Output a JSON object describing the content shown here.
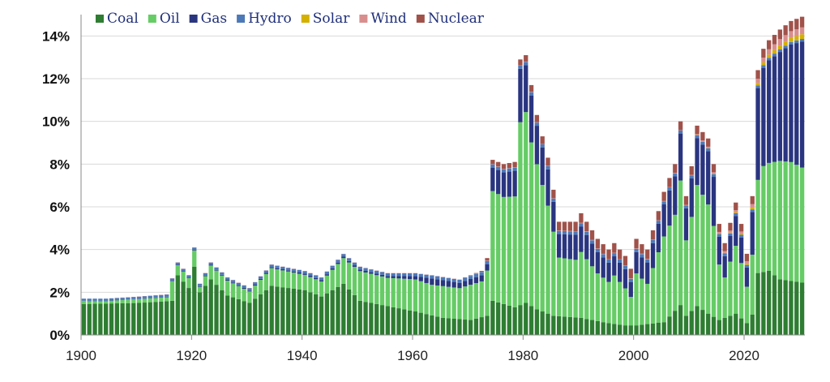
{
  "chart_data": {
    "type": "stacked-bar",
    "title": "",
    "xlabel": "",
    "ylabel": "",
    "ylim": [
      0,
      15
    ],
    "yticks": [
      {
        "value": 0,
        "label": "0%"
      },
      {
        "value": 2,
        "label": "2%"
      },
      {
        "value": 4,
        "label": "4%"
      },
      {
        "value": 6,
        "label": "6%"
      },
      {
        "value": 8,
        "label": "8%"
      },
      {
        "value": 10,
        "label": "10%"
      },
      {
        "value": 12,
        "label": "12%"
      },
      {
        "value": 14,
        "label": "14%"
      }
    ],
    "xticks": [
      {
        "value": 1900,
        "label": "1900"
      },
      {
        "value": 1920,
        "label": "1920"
      },
      {
        "value": 1940,
        "label": "1940"
      },
      {
        "value": 1960,
        "label": "1960"
      },
      {
        "value": 1980,
        "label": "1980"
      },
      {
        "value": 2000,
        "label": "2000"
      },
      {
        "value": 2020,
        "label": "2020"
      }
    ],
    "grid": true,
    "legend_position": "top-left",
    "colors": [
      "#2e7d32",
      "#66cc66",
      "#2a3580",
      "#4d79b8",
      "#d4b000",
      "#d98e8e",
      "#a0524a"
    ],
    "keys": [
      {
        "year": 1900,
        "total": 1.7
      },
      {
        "year": 1904,
        "total": 1.7
      },
      {
        "year": 1910,
        "total": 1.8
      },
      {
        "year": 1915,
        "total": 1.9
      },
      {
        "year": 1917,
        "total": 3.4
      },
      {
        "year": 1919,
        "total": 2.8
      },
      {
        "year": 1920,
        "total": 4.1
      },
      {
        "year": 1921,
        "total": 2.4
      },
      {
        "year": 1923,
        "total": 3.4
      },
      {
        "year": 1926,
        "total": 2.7
      },
      {
        "year": 1930,
        "total": 2.2
      },
      {
        "year": 1934,
        "total": 3.3
      },
      {
        "year": 1940,
        "total": 3.0
      },
      {
        "year": 1943,
        "total": 2.7
      },
      {
        "year": 1947,
        "total": 3.8
      },
      {
        "year": 1950,
        "total": 3.2
      },
      {
        "year": 1955,
        "total": 2.9
      },
      {
        "year": 1960,
        "total": 2.9
      },
      {
        "year": 1963,
        "total": 2.8
      },
      {
        "year": 1968,
        "total": 2.6
      },
      {
        "year": 1972,
        "total": 3.0
      },
      {
        "year": 1973,
        "total": 3.6
      },
      {
        "year": 1974,
        "total": 8.2
      },
      {
        "year": 1976,
        "total": 8.0
      },
      {
        "year": 1978,
        "total": 8.1
      },
      {
        "year": 1979,
        "total": 12.9
      },
      {
        "year": 1980,
        "total": 13.1
      },
      {
        "year": 1981,
        "total": 11.7
      },
      {
        "year": 1982,
        "total": 10.3
      },
      {
        "year": 1984,
        "total": 8.3
      },
      {
        "year": 1986,
        "total": 5.3
      },
      {
        "year": 1989,
        "total": 5.3
      },
      {
        "year": 1990,
        "total": 5.7
      },
      {
        "year": 1993,
        "total": 4.5
      },
      {
        "year": 1995,
        "total": 4.0
      },
      {
        "year": 1996,
        "total": 4.3
      },
      {
        "year": 1998,
        "total": 3.7
      },
      {
        "year": 1999,
        "total": 3.1
      },
      {
        "year": 2000,
        "total": 4.5
      },
      {
        "year": 2002,
        "total": 4.0
      },
      {
        "year": 2005,
        "total": 6.7
      },
      {
        "year": 2007,
        "total": 8.0
      },
      {
        "year": 2008,
        "total": 10.0
      },
      {
        "year": 2009,
        "total": 6.5
      },
      {
        "year": 2010,
        "total": 7.9
      },
      {
        "year": 2011,
        "total": 9.8
      },
      {
        "year": 2013,
        "total": 9.2
      },
      {
        "year": 2014,
        "total": 8.0
      },
      {
        "year": 2015,
        "total": 5.2
      },
      {
        "year": 2016,
        "total": 4.3
      },
      {
        "year": 2018,
        "total": 6.2
      },
      {
        "year": 2019,
        "total": 5.2
      },
      {
        "year": 2020,
        "total": 3.8
      },
      {
        "year": 2021,
        "total": 6.5
      },
      {
        "year": 2022,
        "total": 12.4
      },
      {
        "year": 2023,
        "total": 13.4
      },
      {
        "year": 2024,
        "total": 13.8
      },
      {
        "year": 2026,
        "total": 14.3
      },
      {
        "year": 2028,
        "total": 14.7
      },
      {
        "year": 2030,
        "total": 14.9
      }
    ],
    "series": [
      {
        "name": "Coal",
        "color": "#2e7d32",
        "keys": [
          [
            1900,
            1.45
          ],
          [
            1910,
            1.5
          ],
          [
            1916,
            1.6
          ],
          [
            1917,
            2.8
          ],
          [
            1919,
            2.2
          ],
          [
            1920,
            3.2
          ],
          [
            1921,
            2.0
          ],
          [
            1923,
            2.6
          ],
          [
            1926,
            1.85
          ],
          [
            1930,
            1.5
          ],
          [
            1934,
            2.3
          ],
          [
            1940,
            2.1
          ],
          [
            1943,
            1.8
          ],
          [
            1947,
            2.4
          ],
          [
            1950,
            1.6
          ],
          [
            1955,
            1.35
          ],
          [
            1960,
            1.1
          ],
          [
            1965,
            0.8
          ],
          [
            1970,
            0.7
          ],
          [
            1973,
            0.9
          ],
          [
            1974,
            1.6
          ],
          [
            1978,
            1.3
          ],
          [
            1980,
            1.5
          ],
          [
            1982,
            1.2
          ],
          [
            1985,
            0.9
          ],
          [
            1990,
            0.8
          ],
          [
            1995,
            0.55
          ],
          [
            1998,
            0.45
          ],
          [
            2000,
            0.45
          ],
          [
            2005,
            0.6
          ],
          [
            2008,
            1.4
          ],
          [
            2009,
            0.9
          ],
          [
            2011,
            1.35
          ],
          [
            2013,
            1.0
          ],
          [
            2015,
            0.7
          ],
          [
            2018,
            1.0
          ],
          [
            2020,
            0.55
          ],
          [
            2021,
            0.95
          ],
          [
            2022,
            2.9
          ],
          [
            2024,
            3.0
          ],
          [
            2026,
            2.6
          ],
          [
            2030,
            2.45
          ]
        ]
      },
      {
        "name": "Oil",
        "color": "#66cc66",
        "keys": [
          [
            1900,
            0.15
          ],
          [
            1915,
            0.2
          ],
          [
            1917,
            0.35
          ],
          [
            1920,
            0.6
          ],
          [
            1921,
            0.3
          ],
          [
            1930,
            0.55
          ],
          [
            1940,
            0.75
          ],
          [
            1947,
            1.1
          ],
          [
            1950,
            1.2
          ],
          [
            1955,
            1.3
          ],
          [
            1960,
            1.4
          ],
          [
            1965,
            1.45
          ],
          [
            1970,
            1.5
          ],
          [
            1973,
            2.1
          ],
          [
            1974,
            5.2
          ],
          [
            1978,
            5.4
          ],
          [
            1979,
            9.0
          ],
          [
            1980,
            9.1
          ],
          [
            1981,
            8.0
          ],
          [
            1982,
            7.0
          ],
          [
            1984,
            5.4
          ],
          [
            1986,
            2.5
          ],
          [
            1990,
            3.1
          ],
          [
            1993,
            2.3
          ],
          [
            1995,
            1.9
          ],
          [
            1998,
            1.6
          ],
          [
            1999,
            1.1
          ],
          [
            2000,
            2.3
          ],
          [
            2002,
            2.0
          ],
          [
            2005,
            3.6
          ],
          [
            2007,
            4.8
          ],
          [
            2008,
            5.9
          ],
          [
            2009,
            3.7
          ],
          [
            2010,
            4.8
          ],
          [
            2011,
            5.6
          ],
          [
            2013,
            5.2
          ],
          [
            2014,
            4.6
          ],
          [
            2015,
            2.7
          ],
          [
            2016,
            2.0
          ],
          [
            2018,
            3.2
          ],
          [
            2019,
            2.5
          ],
          [
            2020,
            1.5
          ],
          [
            2021,
            2.7
          ],
          [
            2022,
            4.0
          ],
          [
            2023,
            4.6
          ],
          [
            2024,
            4.8
          ],
          [
            2026,
            5.1
          ],
          [
            2030,
            5.1
          ]
        ]
      },
      {
        "name": "Gas",
        "color": "#2a3580",
        "keys": [
          [
            1900,
            0.0
          ],
          [
            1955,
            0.08
          ],
          [
            1960,
            0.15
          ],
          [
            1963,
            0.3
          ],
          [
            1968,
            0.25
          ],
          [
            1973,
            0.3
          ],
          [
            1974,
            1.1
          ],
          [
            1978,
            1.2
          ],
          [
            1979,
            2.5
          ],
          [
            1980,
            2.2
          ],
          [
            1981,
            2.2
          ],
          [
            1982,
            1.8
          ],
          [
            1984,
            1.7
          ],
          [
            1986,
            1.1
          ],
          [
            1990,
            1.2
          ],
          [
            1993,
            1.0
          ],
          [
            1995,
            0.9
          ],
          [
            1998,
            0.9
          ],
          [
            1999,
            0.7
          ],
          [
            2000,
            1.0
          ],
          [
            2002,
            1.0
          ],
          [
            2005,
            1.5
          ],
          [
            2007,
            1.8
          ],
          [
            2008,
            2.2
          ],
          [
            2009,
            1.5
          ],
          [
            2010,
            1.8
          ],
          [
            2011,
            2.2
          ],
          [
            2013,
            2.5
          ],
          [
            2014,
            2.3
          ],
          [
            2015,
            1.3
          ],
          [
            2016,
            1.0
          ],
          [
            2018,
            1.4
          ],
          [
            2019,
            1.2
          ],
          [
            2020,
            0.9
          ],
          [
            2021,
            2.0
          ],
          [
            2022,
            4.3
          ],
          [
            2023,
            4.6
          ],
          [
            2024,
            4.8
          ],
          [
            2026,
            5.1
          ],
          [
            2028,
            5.5
          ],
          [
            2030,
            5.9
          ]
        ]
      },
      {
        "name": "Hydro",
        "color": "#4d79b8",
        "keys": [
          [
            1900,
            0.1
          ],
          [
            1940,
            0.12
          ],
          [
            1973,
            0.15
          ],
          [
            1980,
            0.15
          ],
          [
            2000,
            0.15
          ],
          [
            2020,
            0.12
          ],
          [
            2030,
            0.12
          ]
        ]
      },
      {
        "name": "Solar",
        "color": "#d4b000",
        "keys": [
          [
            1900,
            0.0
          ],
          [
            2010,
            0.0
          ],
          [
            2015,
            0.02
          ],
          [
            2020,
            0.05
          ],
          [
            2022,
            0.12
          ],
          [
            2026,
            0.18
          ],
          [
            2030,
            0.22
          ]
        ]
      },
      {
        "name": "Wind",
        "color": "#d98e8e",
        "keys": [
          [
            1900,
            0.0
          ],
          [
            2008,
            0.02
          ],
          [
            2015,
            0.08
          ],
          [
            2020,
            0.12
          ],
          [
            2022,
            0.2
          ],
          [
            2026,
            0.3
          ],
          [
            2030,
            0.32
          ]
        ]
      },
      {
        "name": "Nuclear",
        "color": "#a0524a",
        "keys": [
          [
            1900,
            0.0
          ],
          [
            1968,
            0.0
          ],
          [
            1972,
            0.04
          ],
          [
            1974,
            0.2
          ],
          [
            1978,
            0.25
          ],
          [
            1980,
            0.3
          ],
          [
            1985,
            0.4
          ],
          [
            1990,
            0.45
          ],
          [
            2000,
            0.45
          ],
          [
            2010,
            0.4
          ],
          [
            2020,
            0.35
          ],
          [
            2022,
            0.4
          ],
          [
            2026,
            0.45
          ],
          [
            2030,
            0.5
          ]
        ]
      }
    ]
  }
}
